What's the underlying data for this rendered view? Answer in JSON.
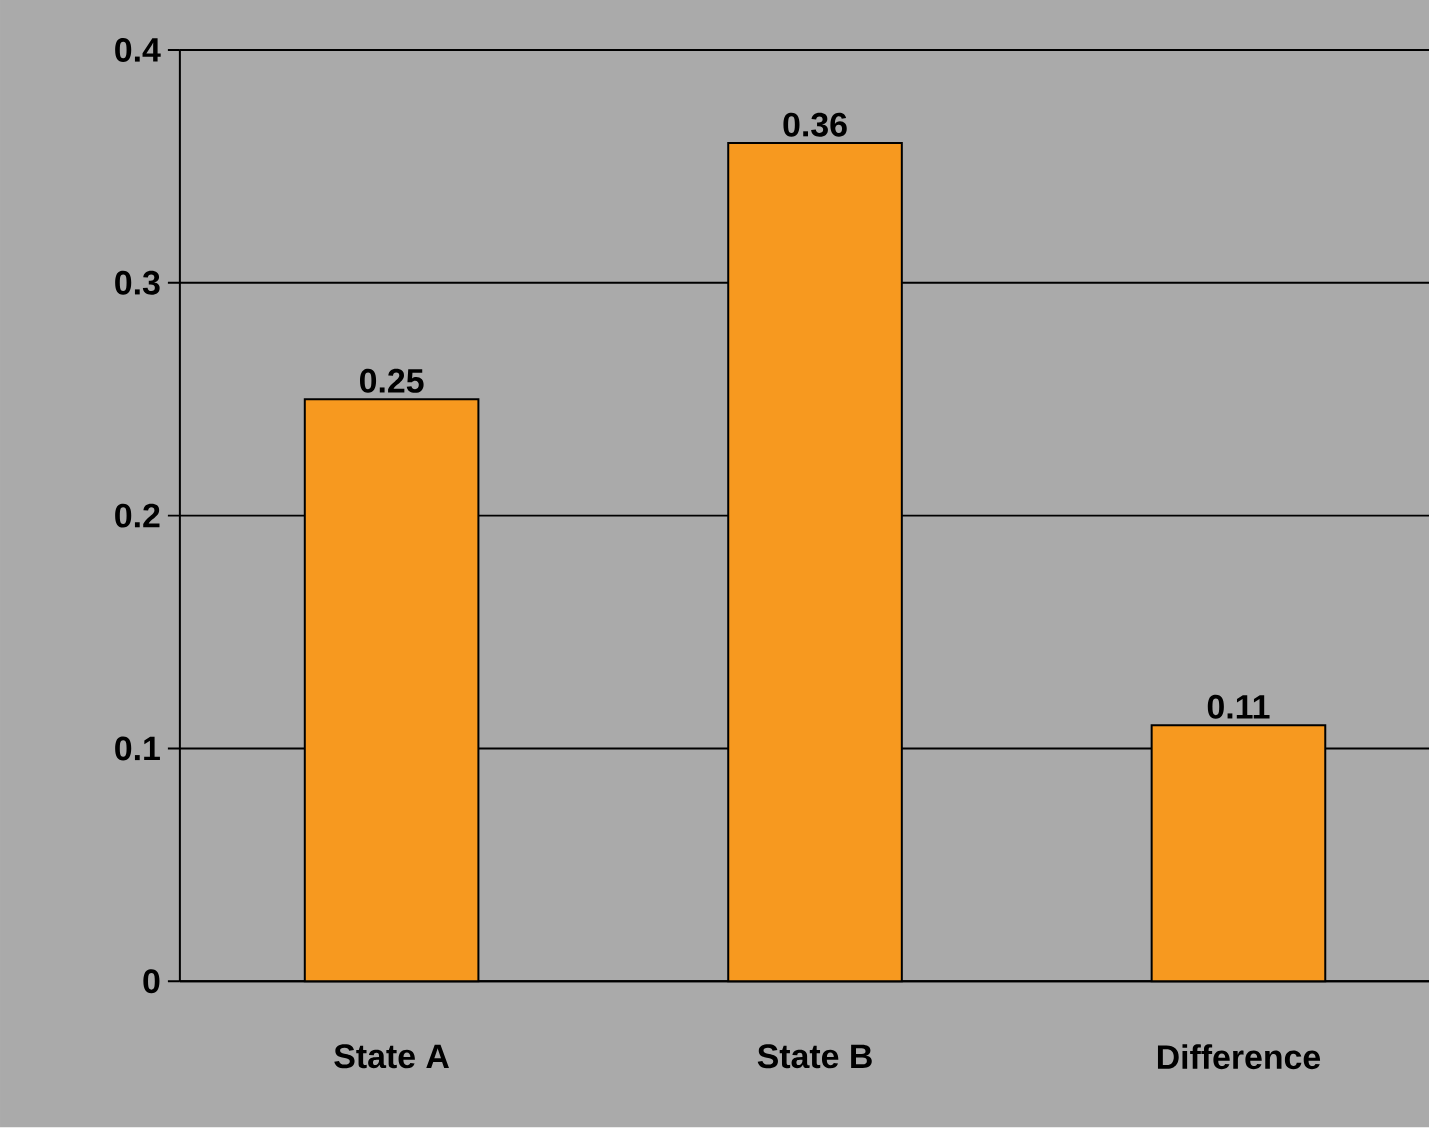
{
  "chart_data": {
    "type": "bar",
    "categories": [
      "State A",
      "State B",
      "Difference"
    ],
    "values": [
      0.25,
      0.36,
      0.11
    ],
    "value_labels": [
      "0.25",
      "0.36",
      "0.11"
    ],
    "color": "#f7991f",
    "ylim": [
      0,
      0.4
    ],
    "yticks": [
      0,
      0.1,
      0.2,
      0.3,
      0.4
    ],
    "grid": "y"
  }
}
